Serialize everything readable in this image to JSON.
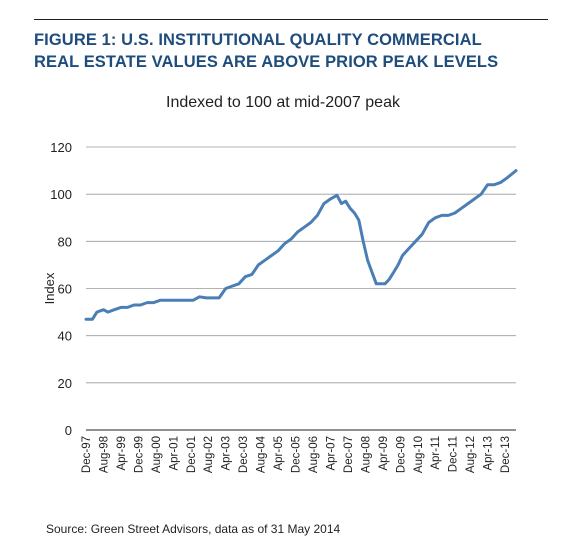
{
  "figure": {
    "title_line1": "FIGURE 1: U.S. INSTITUTIONAL QUALITY COMMERCIAL",
    "title_line2": "REAL ESTATE VALUES ARE ABOVE PRIOR PEAK LEVELS",
    "title_color": "#1e4c7c",
    "source": "Source:  Green Street Advisors, data as of 31 May 2014"
  },
  "chart_data": {
    "type": "line",
    "title": "",
    "subtitle": "Indexed to 100 at mid-2007 peak",
    "xlabel": "",
    "ylabel": "Index",
    "ylim": [
      0,
      120
    ],
    "yticks": [
      0,
      20,
      40,
      60,
      80,
      100,
      120
    ],
    "grid": true,
    "legend": "none",
    "line_color": "#4a7fb5",
    "xlim": [
      "1997-12",
      "2014-05"
    ],
    "xtick_labels": [
      "Dec-97",
      "Aug-98",
      "Apr-99",
      "Dec-99",
      "Aug-00",
      "Apr-01",
      "Dec-01",
      "Aug-02",
      "Apr-03",
      "Dec-03",
      "Aug-04",
      "Apr-05",
      "Dec-05",
      "Aug-06",
      "Apr-07",
      "Dec-07",
      "Aug-08",
      "Apr-09",
      "Dec-09",
      "Aug-10",
      "Apr-11",
      "Dec-11",
      "Aug-12",
      "Apr-13",
      "Dec-13"
    ],
    "series": [
      {
        "x": [
          "1997-12",
          "1998-03",
          "1998-05",
          "1998-08",
          "1998-10",
          "1999-01",
          "1999-04",
          "1999-07",
          "1999-10",
          "2000-01",
          "2000-04",
          "2000-07",
          "2000-10",
          "2001-01",
          "2001-04",
          "2001-07",
          "2001-10",
          "2002-01",
          "2002-04",
          "2002-07",
          "2002-10",
          "2003-01",
          "2003-04",
          "2003-07",
          "2003-10",
          "2004-01",
          "2004-04",
          "2004-07",
          "2004-10",
          "2005-01",
          "2005-04",
          "2005-07",
          "2005-10",
          "2006-01",
          "2006-04",
          "2006-07",
          "2006-10",
          "2007-01",
          "2007-04",
          "2007-07",
          "2007-09",
          "2007-11",
          "2008-01",
          "2008-03",
          "2008-05",
          "2008-07",
          "2008-09",
          "2008-11",
          "2009-01",
          "2009-03",
          "2009-05",
          "2009-07",
          "2009-09",
          "2009-11",
          "2010-01",
          "2010-04",
          "2010-07",
          "2010-10",
          "2011-01",
          "2011-04",
          "2011-07",
          "2011-10",
          "2012-01",
          "2012-04",
          "2012-07",
          "2012-10",
          "2013-01",
          "2013-04",
          "2013-07",
          "2013-10",
          "2014-01",
          "2014-05"
        ],
        "y": [
          47,
          47,
          50,
          51,
          50,
          51,
          52,
          52,
          53,
          53,
          54,
          54,
          55,
          55,
          55,
          55,
          55,
          55,
          56.5,
          56,
          56,
          56,
          60,
          61,
          62,
          65,
          66,
          70,
          72,
          74,
          76,
          79,
          81,
          84,
          86,
          88,
          91,
          96,
          98,
          99.5,
          96,
          97,
          94,
          92,
          89,
          80,
          72,
          67,
          62,
          62,
          62,
          64,
          67,
          70,
          74,
          77,
          80,
          83,
          88,
          90,
          91,
          91,
          92,
          94,
          96,
          98,
          100,
          104,
          104,
          105,
          107,
          110
        ]
      }
    ]
  }
}
